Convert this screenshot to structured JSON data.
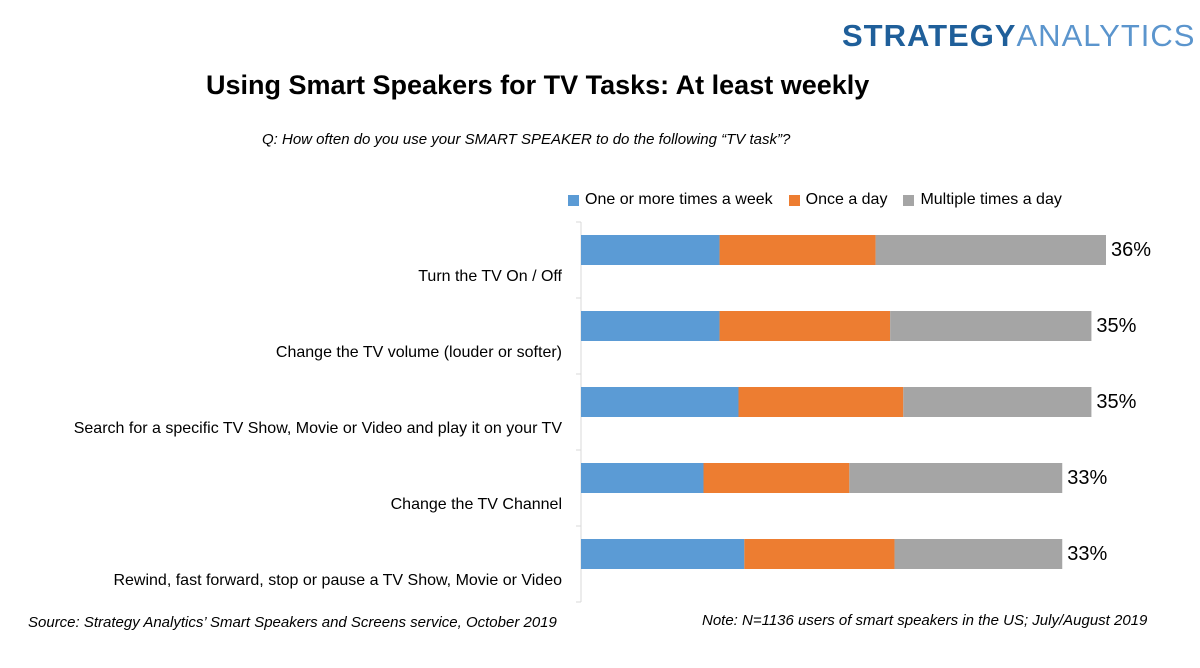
{
  "logo": {
    "part1": "STRATEGY",
    "part2": "ANALYTICS"
  },
  "title": "Using Smart Speakers for TV Tasks: At least weekly",
  "question": "Q: How often do you use your SMART SPEAKER to do the following “TV task”?",
  "footer": {
    "source": "Source: Strategy Analytics’ Smart Speakers and Screens service, October 2019",
    "note": "Note: N=1136 users of smart speakers in the US; July/August 2019"
  },
  "colors": {
    "one_or_more_week": "#5b9bd5",
    "once_day": "#ed7d31",
    "multiple_day": "#a5a5a5",
    "logo_dark": "#1f5f9a",
    "logo_light": "#5b95cd"
  },
  "chart_data": {
    "type": "bar",
    "orientation": "horizontal",
    "stacked": true,
    "categories": [
      "Turn the TV On / Off",
      "Change the TV volume (louder or softer)",
      "Search for a specific TV Show, Movie or Video and play it on your TV",
      "Change the TV Channel",
      "Rewind, fast forward, stop or pause a TV Show, Movie or Video"
    ],
    "series": [
      {
        "name": "One or more times a week",
        "values": [
          9.5,
          9.5,
          10.8,
          8.4,
          11.2
        ]
      },
      {
        "name": "Once a day",
        "values": [
          10.7,
          11.7,
          11.3,
          10.0,
          10.3
        ]
      },
      {
        "name": "Multiple times a day",
        "values": [
          15.8,
          13.8,
          12.9,
          14.6,
          11.5
        ]
      }
    ],
    "totals": [
      "36%",
      "35%",
      "35%",
      "33%",
      "33%"
    ],
    "xlim": [
      0,
      36
    ],
    "grid": false,
    "legend": "top"
  }
}
